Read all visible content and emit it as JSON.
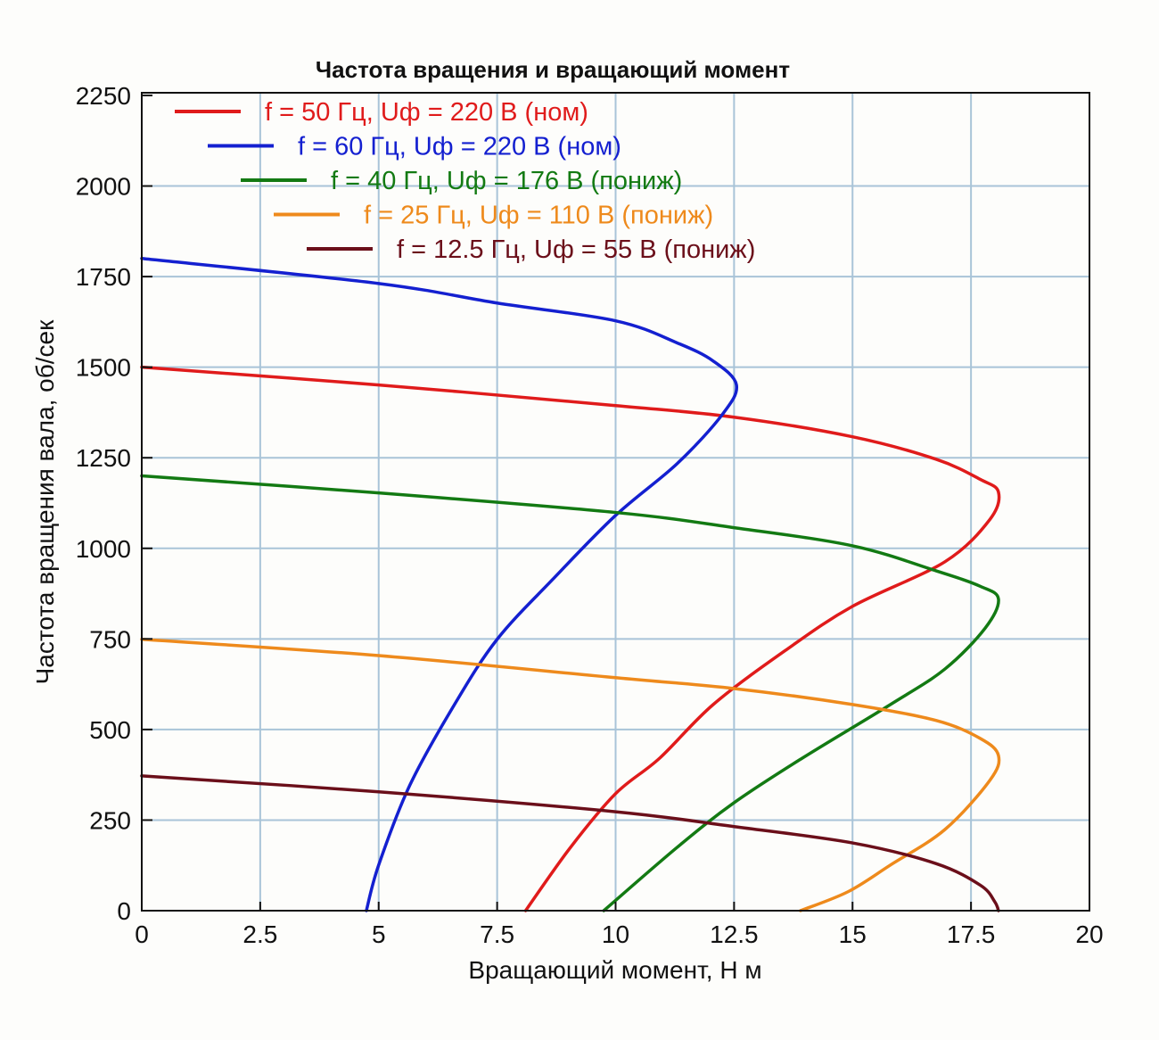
{
  "chart_data": {
    "type": "line",
    "title": "Частота вращения и вращающий момент",
    "xlabel": "Вращающий момент, Н м",
    "ylabel": "Частота вращения вала, об/сек",
    "xlim": [
      0,
      20
    ],
    "ylim": [
      0,
      2250
    ],
    "xticks": [
      "0",
      "2.5",
      "5",
      "7.5",
      "10",
      "12.5",
      "15",
      "17.5",
      "20"
    ],
    "yticks": [
      "0",
      "250",
      "500",
      "750",
      "1000",
      "1250",
      "1500",
      "1750",
      "2000",
      "2250"
    ],
    "grid": true,
    "legend_position": "top",
    "series": [
      {
        "name": "f = 50 Гц, Uф = 220 В (ном)",
        "color": "#e01b1b",
        "points": [
          [
            0,
            1500
          ],
          [
            5,
            1451
          ],
          [
            10,
            1394
          ],
          [
            12.5,
            1362
          ],
          [
            15,
            1308
          ],
          [
            16.76,
            1246
          ],
          [
            17.7,
            1190
          ],
          [
            18.08,
            1155
          ],
          [
            17.9,
            1080
          ],
          [
            16.95,
            963
          ],
          [
            15,
            840
          ],
          [
            13.57,
            717
          ],
          [
            12.06,
            569
          ],
          [
            10.93,
            421
          ],
          [
            10,
            323
          ],
          [
            9.05,
            175
          ],
          [
            8.1,
            0
          ]
        ]
      },
      {
        "name": "f = 60 Гц, Uф = 220 В (ном)",
        "color": "#1420d0",
        "points": [
          [
            0,
            1800
          ],
          [
            5,
            1731
          ],
          [
            7.5,
            1677
          ],
          [
            10,
            1628
          ],
          [
            11.3,
            1567
          ],
          [
            12.06,
            1517
          ],
          [
            12.55,
            1451
          ],
          [
            12.25,
            1369
          ],
          [
            11.3,
            1234
          ],
          [
            10,
            1091
          ],
          [
            8.67,
            914
          ],
          [
            7.5,
            749
          ],
          [
            6.6,
            569
          ],
          [
            5.66,
            347
          ],
          [
            5,
            126
          ],
          [
            4.74,
            0
          ]
        ]
      },
      {
        "name": "f = 40 Гц, Uф = 176 В (пониж)",
        "color": "#137a13",
        "points": [
          [
            0,
            1200
          ],
          [
            5,
            1153
          ],
          [
            10,
            1099
          ],
          [
            12.5,
            1057
          ],
          [
            15,
            1007
          ],
          [
            16.76,
            938
          ],
          [
            17.7,
            895
          ],
          [
            18.08,
            860
          ],
          [
            17.8,
            780
          ],
          [
            16.95,
            667
          ],
          [
            15.8,
            569
          ],
          [
            13.94,
            421
          ],
          [
            12.5,
            298
          ],
          [
            11.3,
            175
          ],
          [
            9.75,
            0
          ]
        ]
      },
      {
        "name": "f = 25 Гц, Uф = 110 В (пониж)",
        "color": "#ee8a1c",
        "points": [
          [
            0,
            749
          ],
          [
            5,
            704
          ],
          [
            10,
            643
          ],
          [
            12.5,
            613
          ],
          [
            15,
            569
          ],
          [
            16.76,
            525
          ],
          [
            17.7,
            475
          ],
          [
            18.08,
            428
          ],
          [
            17.9,
            360
          ],
          [
            16.95,
            224
          ],
          [
            15.8,
            126
          ],
          [
            14.9,
            52
          ],
          [
            13.9,
            0
          ]
        ]
      },
      {
        "name": "f = 12.5 Гц, Uф = 55 В (пониж)",
        "color": "#6b0f1a",
        "points": [
          [
            0,
            372
          ],
          [
            5,
            328
          ],
          [
            10,
            273
          ],
          [
            12.5,
            232
          ],
          [
            15,
            187
          ],
          [
            16.76,
            130
          ],
          [
            17.7,
            70
          ],
          [
            18.0,
            25
          ],
          [
            18.08,
            0
          ]
        ]
      }
    ]
  }
}
